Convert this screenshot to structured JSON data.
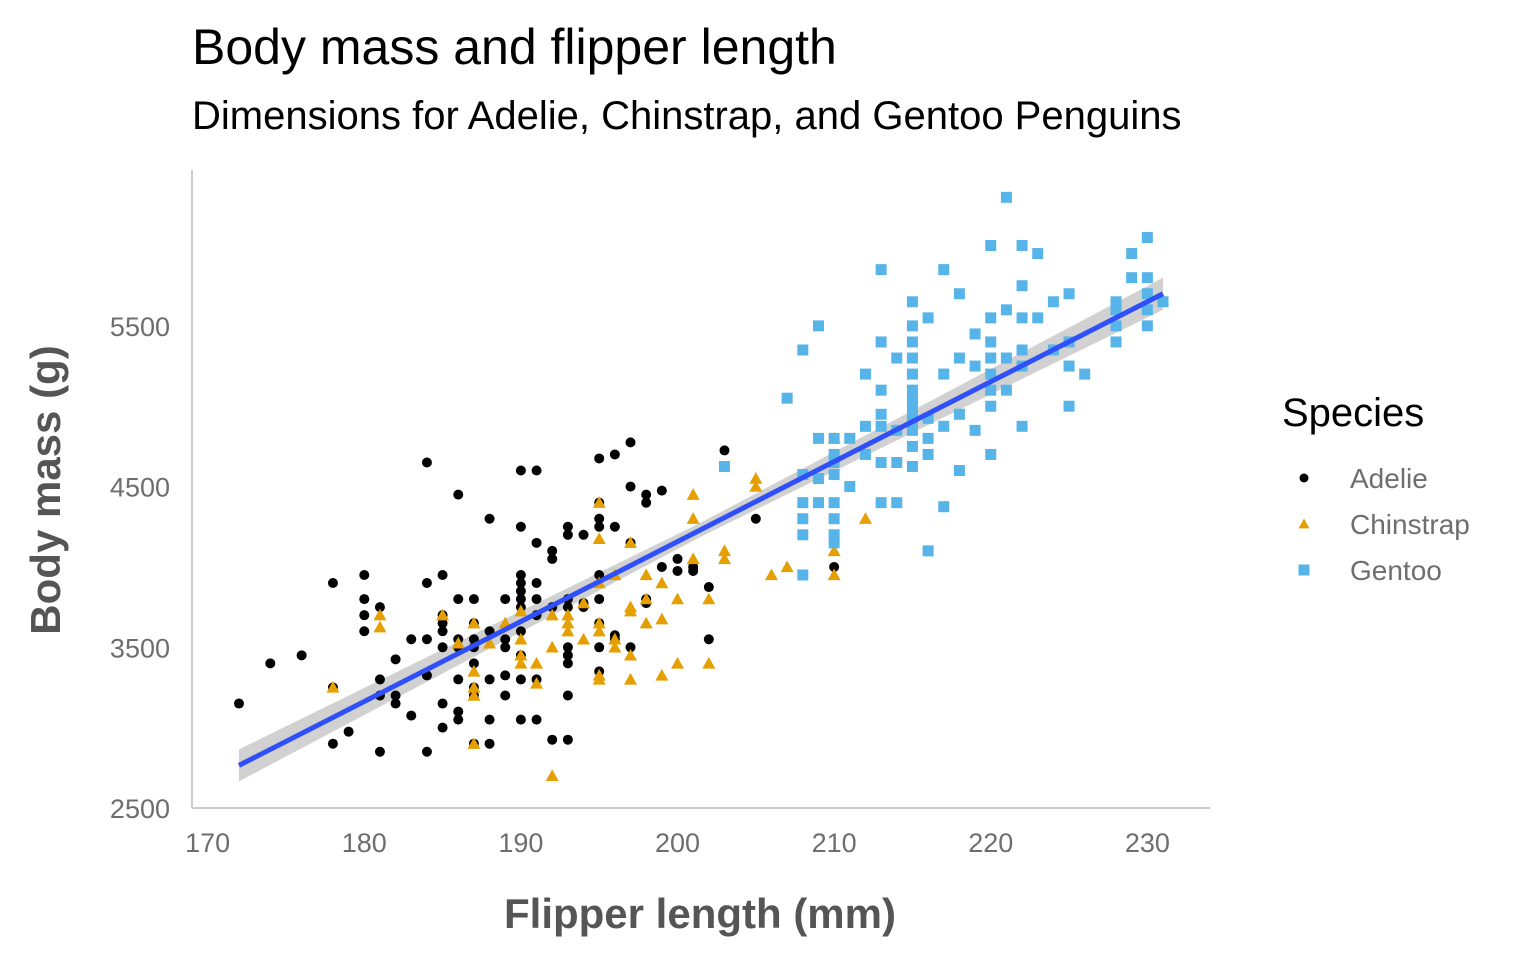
{
  "chart_data": {
    "type": "scatter",
    "title": "Body mass and flipper length",
    "subtitle": "Dimensions for Adelie, Chinstrap, and Gentoo Penguins",
    "xlabel": "Flipper length (mm)",
    "ylabel": "Body mass (g)",
    "xlim": [
      169,
      234
    ],
    "ylim": [
      2500,
      6470
    ],
    "x_ticks": [
      170,
      180,
      190,
      200,
      210,
      220,
      230
    ],
    "y_ticks": [
      2500,
      3500,
      4500,
      5500
    ],
    "grid": false,
    "legend": {
      "title": "Species",
      "position": "right"
    },
    "trend_line": {
      "type": "linear",
      "color": "#2f4ff8",
      "band_color": "#cccccc",
      "x": [
        172,
        231
      ],
      "y": [
        2765,
        5700
      ]
    },
    "series": [
      {
        "name": "Adelie",
        "marker": "circle",
        "color": "#000000",
        "points": [
          [
            172,
            3150
          ],
          [
            174,
            3400
          ],
          [
            176,
            3450
          ],
          [
            178,
            3250
          ],
          [
            178,
            2900
          ],
          [
            178,
            3900
          ],
          [
            179,
            2975
          ],
          [
            180,
            3950
          ],
          [
            180,
            3800
          ],
          [
            180,
            3700
          ],
          [
            180,
            3600
          ],
          [
            181,
            3750
          ],
          [
            181,
            3300
          ],
          [
            181,
            2850
          ],
          [
            181,
            3200
          ],
          [
            182,
            3425
          ],
          [
            182,
            3200
          ],
          [
            182,
            3150
          ],
          [
            183,
            3550
          ],
          [
            183,
            3075
          ],
          [
            184,
            3900
          ],
          [
            184,
            3550
          ],
          [
            184,
            3325
          ],
          [
            184,
            2850
          ],
          [
            184,
            4650
          ],
          [
            185,
            3950
          ],
          [
            185,
            3650
          ],
          [
            185,
            3700
          ],
          [
            185,
            3600
          ],
          [
            185,
            3500
          ],
          [
            185,
            3150
          ],
          [
            185,
            3000
          ],
          [
            186,
            3800
          ],
          [
            186,
            3550
          ],
          [
            186,
            3500
          ],
          [
            186,
            3300
          ],
          [
            186,
            3100
          ],
          [
            186,
            3050
          ],
          [
            186,
            4450
          ],
          [
            187,
            3800
          ],
          [
            187,
            3650
          ],
          [
            187,
            3550
          ],
          [
            187,
            3500
          ],
          [
            187,
            3250
          ],
          [
            187,
            3200
          ],
          [
            187,
            3400
          ],
          [
            187,
            2900
          ],
          [
            188,
            4300
          ],
          [
            188,
            3600
          ],
          [
            188,
            3300
          ],
          [
            188,
            2900
          ],
          [
            188,
            3050
          ],
          [
            189,
            3800
          ],
          [
            189,
            3550
          ],
          [
            189,
            3500
          ],
          [
            189,
            3325
          ],
          [
            189,
            3200
          ],
          [
            190,
            4600
          ],
          [
            190,
            4250
          ],
          [
            190,
            3950
          ],
          [
            190,
            3900
          ],
          [
            190,
            3800
          ],
          [
            190,
            3750
          ],
          [
            190,
            3600
          ],
          [
            190,
            3450
          ],
          [
            190,
            3300
          ],
          [
            190,
            3050
          ],
          [
            190,
            3850
          ],
          [
            191,
            4600
          ],
          [
            191,
            4150
          ],
          [
            191,
            3900
          ],
          [
            191,
            3800
          ],
          [
            191,
            3700
          ],
          [
            191,
            3300
          ],
          [
            191,
            3050
          ],
          [
            192,
            4100
          ],
          [
            192,
            4050
          ],
          [
            192,
            3750
          ],
          [
            192,
            2925
          ],
          [
            193,
            4250
          ],
          [
            193,
            4200
          ],
          [
            193,
            3800
          ],
          [
            193,
            3750
          ],
          [
            193,
            3500
          ],
          [
            193,
            3450
          ],
          [
            193,
            3400
          ],
          [
            193,
            3200
          ],
          [
            193,
            2925
          ],
          [
            194,
            4200
          ],
          [
            194,
            3775
          ],
          [
            194,
            3750
          ],
          [
            195,
            4675
          ],
          [
            195,
            4400
          ],
          [
            195,
            4300
          ],
          [
            195,
            4250
          ],
          [
            195,
            3950
          ],
          [
            195,
            3800
          ],
          [
            195,
            3650
          ],
          [
            195,
            3500
          ],
          [
            195,
            3350
          ],
          [
            196,
            4700
          ],
          [
            196,
            4250
          ],
          [
            196,
            3550
          ],
          [
            196,
            3575
          ],
          [
            197,
            4775
          ],
          [
            197,
            4500
          ],
          [
            197,
            4150
          ],
          [
            197,
            3500
          ],
          [
            198,
            4450
          ],
          [
            198,
            3800
          ],
          [
            198,
            3775
          ],
          [
            198,
            4400
          ],
          [
            199,
            4475
          ],
          [
            199,
            4000
          ],
          [
            200,
            4050
          ],
          [
            200,
            3975
          ],
          [
            201,
            3975
          ],
          [
            201,
            4000
          ],
          [
            202,
            3550
          ],
          [
            202,
            3875
          ],
          [
            203,
            4725
          ],
          [
            205,
            4300
          ],
          [
            210,
            4000
          ]
        ]
      },
      {
        "name": "Chinstrap",
        "marker": "triangle",
        "color": "#e69f00",
        "points": [
          [
            178,
            3250
          ],
          [
            181,
            3700
          ],
          [
            181,
            3625
          ],
          [
            185,
            3700
          ],
          [
            186,
            3525
          ],
          [
            187,
            3650
          ],
          [
            187,
            3350
          ],
          [
            187,
            3200
          ],
          [
            187,
            3250
          ],
          [
            187,
            2900
          ],
          [
            188,
            3525
          ],
          [
            189,
            3650
          ],
          [
            190,
            3725
          ],
          [
            190,
            3450
          ],
          [
            190,
            3400
          ],
          [
            190,
            3550
          ],
          [
            191,
            3400
          ],
          [
            191,
            3275
          ],
          [
            192,
            3700
          ],
          [
            192,
            3500
          ],
          [
            192,
            2700
          ],
          [
            193,
            3600
          ],
          [
            193,
            3700
          ],
          [
            193,
            3650
          ],
          [
            194,
            3775
          ],
          [
            194,
            3550
          ],
          [
            195,
            4400
          ],
          [
            195,
            3900
          ],
          [
            195,
            3650
          ],
          [
            195,
            3600
          ],
          [
            195,
            3300
          ],
          [
            195,
            3325
          ],
          [
            195,
            4175
          ],
          [
            196,
            3950
          ],
          [
            196,
            3550
          ],
          [
            196,
            3500
          ],
          [
            197,
            4150
          ],
          [
            197,
            3750
          ],
          [
            197,
            3450
          ],
          [
            197,
            3300
          ],
          [
            197,
            3725
          ],
          [
            198,
            3950
          ],
          [
            198,
            3650
          ],
          [
            198,
            3800
          ],
          [
            199,
            3900
          ],
          [
            199,
            3325
          ],
          [
            199,
            3675
          ],
          [
            200,
            3800
          ],
          [
            200,
            3400
          ],
          [
            201,
            4450
          ],
          [
            201,
            4300
          ],
          [
            201,
            4050
          ],
          [
            202,
            3800
          ],
          [
            202,
            3400
          ],
          [
            203,
            4100
          ],
          [
            203,
            4050
          ],
          [
            205,
            4550
          ],
          [
            205,
            4500
          ],
          [
            206,
            3950
          ],
          [
            207,
            4000
          ],
          [
            210,
            4800
          ],
          [
            210,
            4100
          ],
          [
            210,
            3950
          ],
          [
            212,
            4300
          ]
        ]
      },
      {
        "name": "Gentoo",
        "marker": "square",
        "color": "#56b4e9",
        "points": [
          [
            203,
            4625
          ],
          [
            207,
            5050
          ],
          [
            208,
            4575
          ],
          [
            208,
            4400
          ],
          [
            208,
            4300
          ],
          [
            208,
            4200
          ],
          [
            208,
            3950
          ],
          [
            208,
            5350
          ],
          [
            209,
            4800
          ],
          [
            209,
            4550
          ],
          [
            209,
            4400
          ],
          [
            209,
            5500
          ],
          [
            210,
            4800
          ],
          [
            210,
            4700
          ],
          [
            210,
            4650
          ],
          [
            210,
            4575
          ],
          [
            210,
            4400
          ],
          [
            210,
            4300
          ],
          [
            210,
            4200
          ],
          [
            210,
            4150
          ],
          [
            211,
            4800
          ],
          [
            211,
            4500
          ],
          [
            212,
            5200
          ],
          [
            212,
            4875
          ],
          [
            212,
            4700
          ],
          [
            213,
            5850
          ],
          [
            213,
            5400
          ],
          [
            213,
            5100
          ],
          [
            213,
            4950
          ],
          [
            213,
            4875
          ],
          [
            213,
            4650
          ],
          [
            213,
            4400
          ],
          [
            214,
            5300
          ],
          [
            214,
            4650
          ],
          [
            214,
            4400
          ],
          [
            214,
            4850
          ],
          [
            215,
            5650
          ],
          [
            215,
            5500
          ],
          [
            215,
            5400
          ],
          [
            215,
            5300
          ],
          [
            215,
            5200
          ],
          [
            215,
            5100
          ],
          [
            215,
            5050
          ],
          [
            215,
            5000
          ],
          [
            215,
            4950
          ],
          [
            215,
            4900
          ],
          [
            215,
            4850
          ],
          [
            215,
            4750
          ],
          [
            215,
            4625
          ],
          [
            216,
            5550
          ],
          [
            216,
            4925
          ],
          [
            216,
            4800
          ],
          [
            216,
            4700
          ],
          [
            216,
            4100
          ],
          [
            217,
            5850
          ],
          [
            217,
            5200
          ],
          [
            217,
            4875
          ],
          [
            217,
            4375
          ],
          [
            218,
            5700
          ],
          [
            218,
            5300
          ],
          [
            218,
            4950
          ],
          [
            218,
            4600
          ],
          [
            219,
            5450
          ],
          [
            219,
            5250
          ],
          [
            219,
            4850
          ],
          [
            220,
            6000
          ],
          [
            220,
            5550
          ],
          [
            220,
            5400
          ],
          [
            220,
            5300
          ],
          [
            220,
            5200
          ],
          [
            220,
            5100
          ],
          [
            220,
            5000
          ],
          [
            220,
            4700
          ],
          [
            221,
            6300
          ],
          [
            221,
            5600
          ],
          [
            221,
            5300
          ],
          [
            221,
            5100
          ],
          [
            222,
            6000
          ],
          [
            222,
            5750
          ],
          [
            222,
            5550
          ],
          [
            222,
            5350
          ],
          [
            222,
            5250
          ],
          [
            222,
            4875
          ],
          [
            223,
            5950
          ],
          [
            223,
            5550
          ],
          [
            224,
            5650
          ],
          [
            224,
            5350
          ],
          [
            225,
            5700
          ],
          [
            225,
            5400
          ],
          [
            225,
            5250
          ],
          [
            225,
            5000
          ],
          [
            226,
            5200
          ],
          [
            228,
            5650
          ],
          [
            228,
            5600
          ],
          [
            228,
            5500
          ],
          [
            228,
            5400
          ],
          [
            229,
            5950
          ],
          [
            229,
            5800
          ],
          [
            230,
            6050
          ],
          [
            230,
            5800
          ],
          [
            230,
            5700
          ],
          [
            230,
            5600
          ],
          [
            230,
            5500
          ],
          [
            231,
            5650
          ]
        ]
      }
    ]
  }
}
